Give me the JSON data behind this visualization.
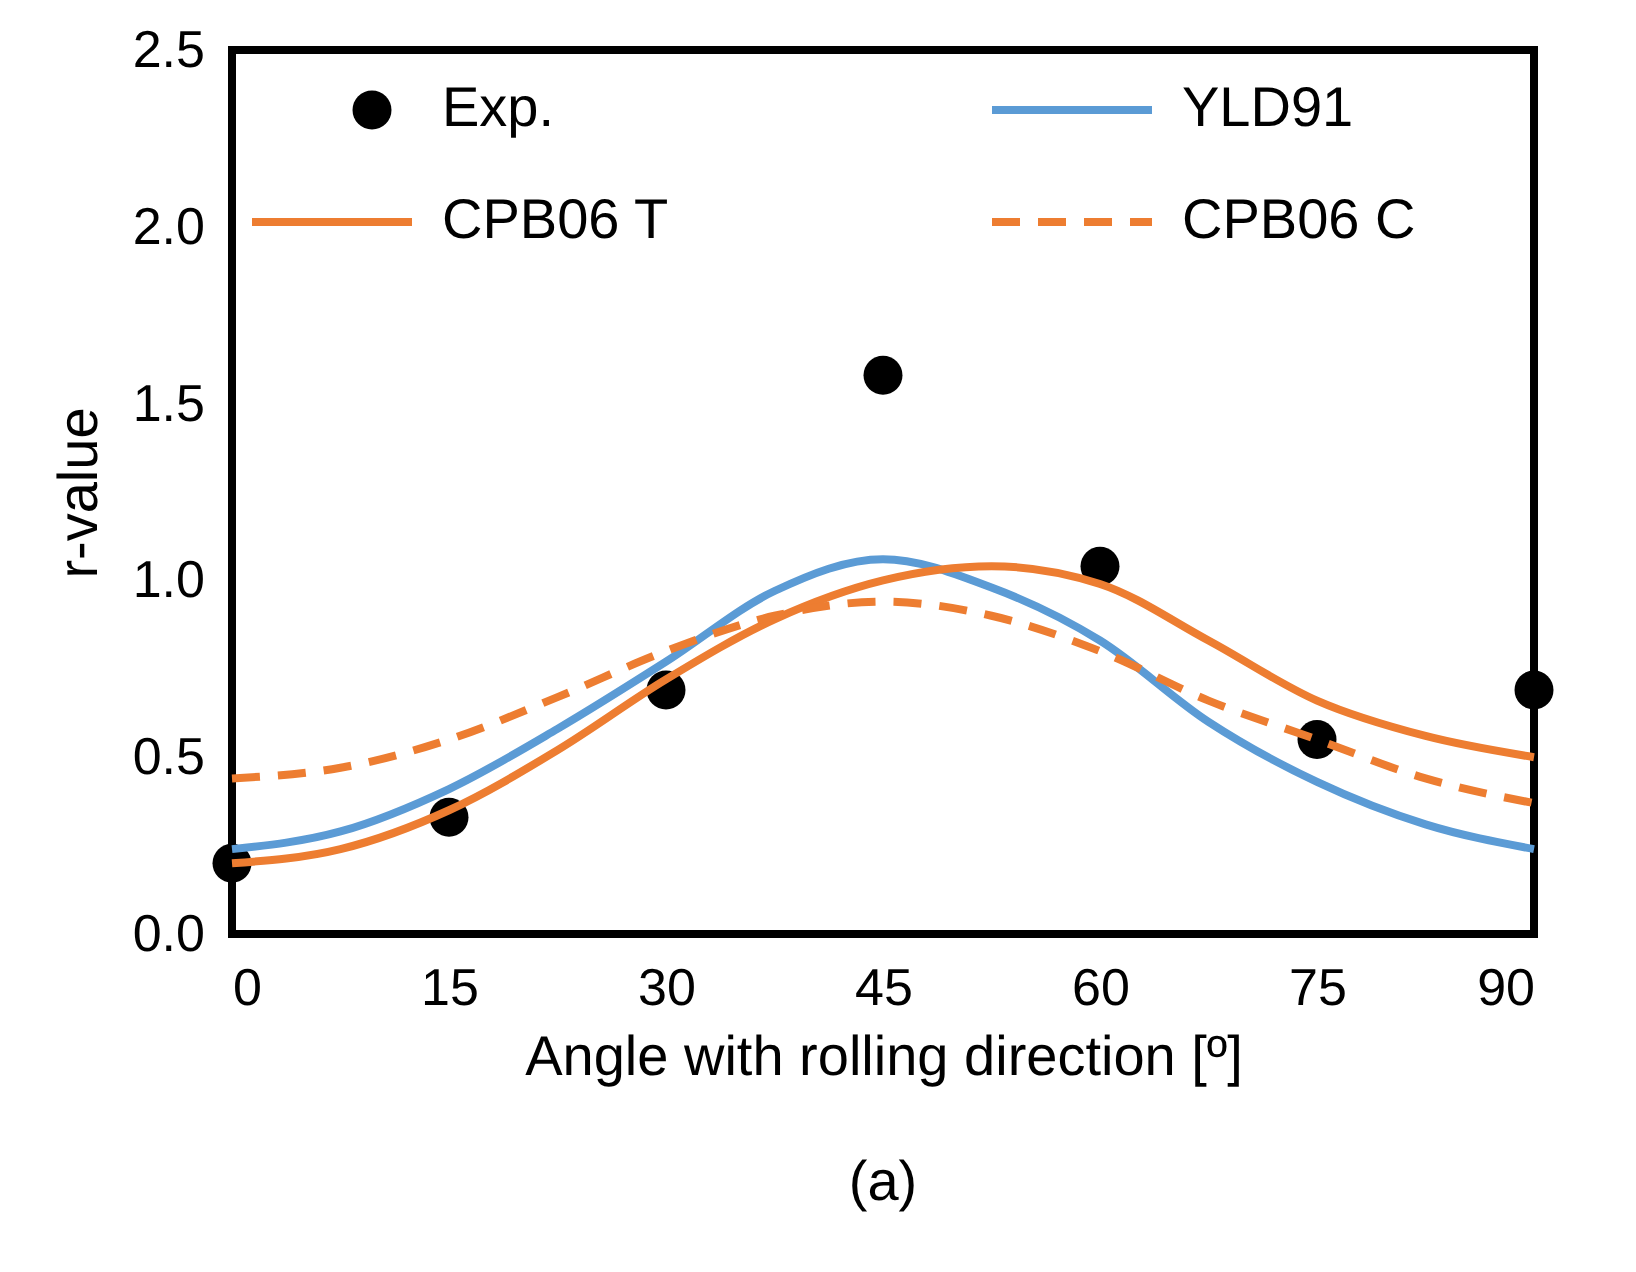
{
  "chart_data": {
    "type": "line",
    "xlabel": "Angle with rolling direction [º]",
    "ylabel": "r-value",
    "annotations": [
      "(a)"
    ],
    "xlim": [
      0,
      90
    ],
    "xticks": [
      0,
      15,
      30,
      45,
      60,
      75,
      90
    ],
    "ylim": [
      0,
      2.5
    ],
    "yticks": [
      {
        "value": 0,
        "label": "0.0"
      },
      0.5,
      {
        "value": 1,
        "label": "1.0"
      },
      1.5,
      {
        "value": 2,
        "label": "2.0"
      },
      2.5
    ],
    "grid": false,
    "legend": "top",
    "series": [
      {
        "name": "Exp.",
        "type": "scatter",
        "marker": "circle",
        "color": "#000000",
        "x": [
          0,
          15,
          30,
          45,
          60,
          75,
          90
        ],
        "values": [
          0.2,
          0.33,
          0.69,
          1.58,
          1.04,
          0.55,
          0.69
        ]
      },
      {
        "name": "YLD91",
        "line_style": "solid",
        "color": "#5b9bd5",
        "x": [
          0,
          7.5,
          15,
          22.5,
          30,
          37.5,
          45,
          52.5,
          60,
          67.5,
          75,
          82.5,
          90
        ],
        "values": [
          0.24,
          0.29,
          0.41,
          0.58,
          0.77,
          0.97,
          1.06,
          0.98,
          0.83,
          0.6,
          0.43,
          0.31,
          0.24
        ]
      },
      {
        "name": "CPB06 T",
        "line_style": "solid",
        "color": "#ed7d31",
        "x": [
          0,
          7.5,
          15,
          22.5,
          30,
          37.5,
          45,
          52.5,
          60,
          67.5,
          75,
          82.5,
          90
        ],
        "values": [
          0.2,
          0.24,
          0.35,
          0.52,
          0.72,
          0.89,
          1.0,
          1.04,
          0.99,
          0.83,
          0.66,
          0.56,
          0.5
        ]
      },
      {
        "name": "CPB06 C",
        "line_style": "dashed",
        "color": "#ed7d31",
        "x": [
          0,
          7.5,
          15,
          22.5,
          30,
          37.5,
          45,
          52.5,
          60,
          67.5,
          75,
          82.5,
          90
        ],
        "values": [
          0.44,
          0.47,
          0.55,
          0.67,
          0.8,
          0.9,
          0.94,
          0.9,
          0.8,
          0.66,
          0.55,
          0.44,
          0.37
        ]
      }
    ]
  }
}
